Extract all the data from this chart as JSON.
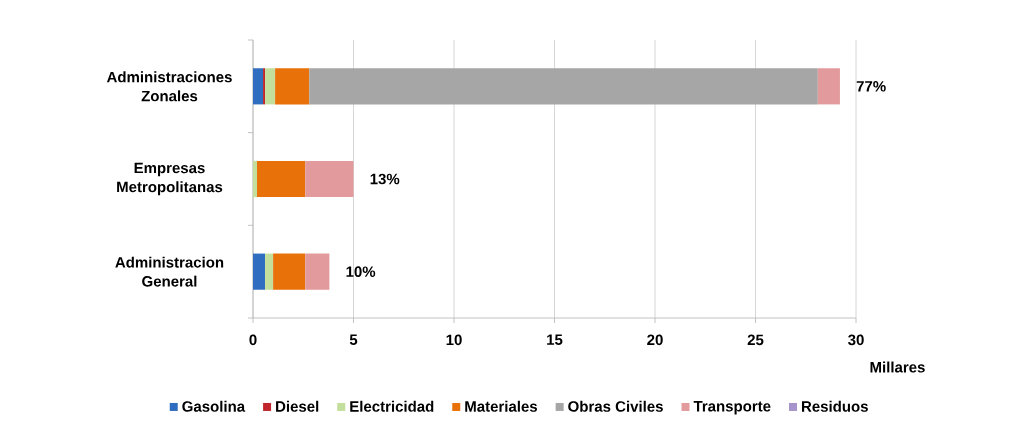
{
  "chart_data": {
    "type": "bar",
    "orientation": "horizontal",
    "stacked": true,
    "categories": [
      "Administraciones Zonales",
      "Empresas Metropolitanas",
      "Administracion General"
    ],
    "series": [
      {
        "name": "Gasolina",
        "color": "#2e6dbf",
        "values": [
          0.5,
          0,
          0.6
        ]
      },
      {
        "name": "Diesel",
        "color": "#c0262c",
        "values": [
          0.1,
          0,
          0
        ]
      },
      {
        "name": "Electricidad",
        "color": "#c4df9b",
        "values": [
          0.5,
          0.2,
          0.4
        ]
      },
      {
        "name": "Materiales",
        "color": "#e8710a",
        "values": [
          1.7,
          2.4,
          1.6
        ]
      },
      {
        "name": "Obras Civiles",
        "color": "#a6a6a6",
        "values": [
          25.3,
          0,
          0
        ]
      },
      {
        "name": "Transporte",
        "color": "#e29a9c",
        "values": [
          1.1,
          2.4,
          1.2
        ]
      },
      {
        "name": "Residuos",
        "color": "#a794cb",
        "values": [
          0,
          0,
          0
        ]
      }
    ],
    "xlabel": "Millares",
    "xlim": [
      0,
      30
    ],
    "xticks": [
      0,
      5,
      10,
      15,
      20,
      25,
      30
    ],
    "grid": "x",
    "legend": "bottom",
    "annotations": [
      {
        "text": "77%",
        "x": 29.2,
        "y": "Administraciones Zonales"
      },
      {
        "text": "13%",
        "x": 5.0,
        "y": "Empresas Metropolitanas"
      },
      {
        "text": "10%",
        "x": 3.8,
        "y": "Administracion General"
      }
    ]
  }
}
